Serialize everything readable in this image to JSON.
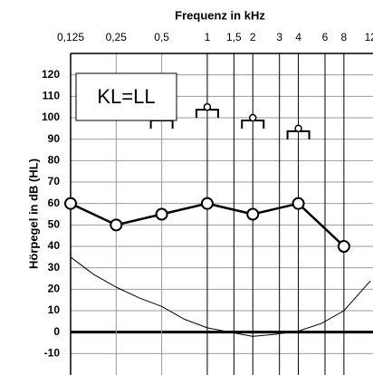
{
  "chart_data": {
    "type": "line",
    "title": "Frequenz in kHz",
    "y_label": "Hörpegel in dB (HL)",
    "annotation": "KL=LL",
    "x_scale": "log",
    "xlim": [
      0.125,
      12
    ],
    "ylim": [
      -20,
      130
    ],
    "xticks": [
      {
        "value": 0.125,
        "label": "0,125"
      },
      {
        "value": 0.25,
        "label": "0,25"
      },
      {
        "value": 0.5,
        "label": "0,5"
      },
      1,
      {
        "value": 1.5,
        "label": "1,5"
      },
      2,
      3,
      4,
      6,
      8,
      12
    ],
    "yticks": [
      -10,
      0,
      10,
      20,
      30,
      40,
      50,
      60,
      70,
      80,
      90,
      100,
      110,
      120
    ],
    "grid": true,
    "series": [
      {
        "style": "curve",
        "color": "#000000",
        "x": [
          0.125,
          0.177,
          0.25,
          0.354,
          0.5,
          0.707,
          1,
          1.41,
          2,
          2.83,
          4,
          5.66,
          8,
          12
        ],
        "values": [
          35,
          27,
          21,
          16,
          12,
          6,
          2,
          0,
          -2,
          -1,
          0.5,
          4,
          10,
          24
        ]
      },
      {
        "style": "air",
        "color": "#000000",
        "x": [
          0.125,
          0.25,
          0.5,
          1,
          2,
          4,
          8
        ],
        "values": [
          60,
          50,
          55,
          60,
          55,
          60,
          40
        ]
      },
      {
        "style": "bone",
        "color": "#000000",
        "x": [
          0.5,
          1,
          2,
          4
        ],
        "values": [
          100,
          105,
          100,
          95
        ]
      }
    ]
  }
}
